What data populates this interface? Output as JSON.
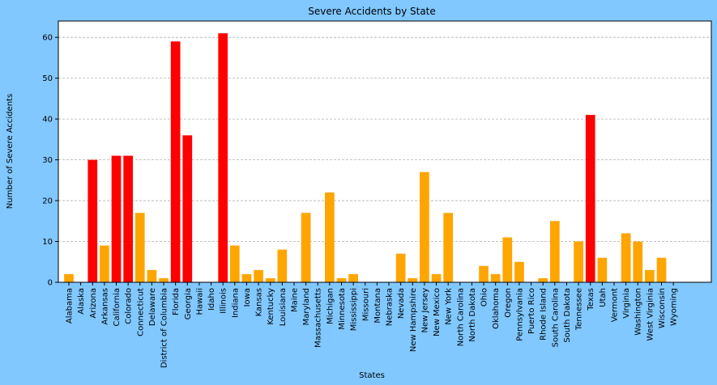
{
  "chart_data": {
    "type": "bar",
    "title": "Severe Accidents by State",
    "xlabel": "States",
    "ylabel": "Number of Severe Accidents",
    "ylim": [
      0,
      64
    ],
    "yticks": [
      0,
      10,
      20,
      30,
      40,
      50,
      60
    ],
    "grid": "y, dashed",
    "highlight_color": "#ff0000",
    "default_color": "#ffa500",
    "background_color": "#80c8ff",
    "categories": [
      "Alabama",
      "Alaska",
      "Arizona",
      "Arkansas",
      "California",
      "Colorado",
      "Connecticut",
      "Delaware",
      "District of Columbia",
      "Florida",
      "Georgia",
      "Hawaii",
      "Idaho",
      "Illinois",
      "Indiana",
      "Iowa",
      "Kansas",
      "Kentucky",
      "Louisiana",
      "Maine",
      "Maryland",
      "Massachusetts",
      "Michigan",
      "Minnesota",
      "Mississippi",
      "Missouri",
      "Montana",
      "Nebraska",
      "Nevada",
      "New Hampshire",
      "New Jersey",
      "New Mexico",
      "New York",
      "North Carolina",
      "North Dakota",
      "Ohio",
      "Oklahoma",
      "Oregon",
      "Pennsylvania",
      "Puerto Rico",
      "Rhode Island",
      "South Carolina",
      "South Dakota",
      "Tennessee",
      "Texas",
      "Utah",
      "Vermont",
      "Virginia",
      "Washington",
      "West Virginia",
      "Wisconsin",
      "Wyoming"
    ],
    "values": [
      2,
      0,
      30,
      9,
      31,
      31,
      17,
      3,
      1,
      59,
      36,
      0,
      0,
      61,
      9,
      2,
      3,
      1,
      8,
      0,
      17,
      0,
      22,
      1,
      2,
      0,
      0,
      0,
      7,
      1,
      27,
      2,
      17,
      0,
      0,
      4,
      2,
      11,
      5,
      0,
      1,
      15,
      0,
      10,
      41,
      6,
      0,
      12,
      10,
      3,
      6,
      0
    ],
    "highlighted": [
      "Arizona",
      "California",
      "Colorado",
      "Florida",
      "Georgia",
      "Illinois",
      "Texas"
    ]
  }
}
